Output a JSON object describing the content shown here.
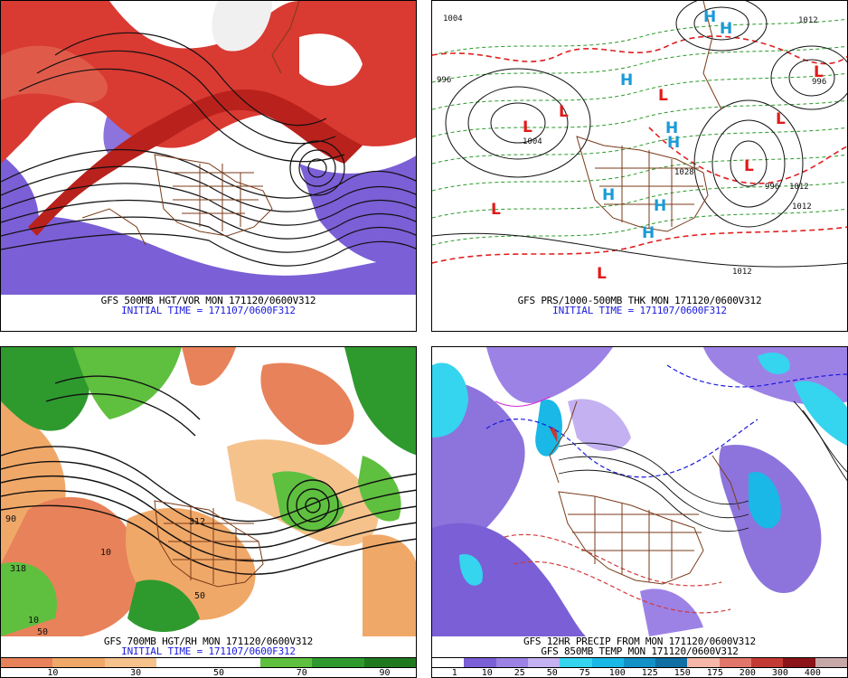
{
  "panels": [
    {
      "id": "p1",
      "caption_line1": "GFS 500MB HGT/VOR MON 171120/0600V312",
      "caption_line2": "INITIAL TIME = 171107/0600F312"
    },
    {
      "id": "p2",
      "caption_line1": "GFS PRS/1000-500MB THK MON 171120/0600V312",
      "caption_line2": "INITIAL TIME = 171107/0600F312",
      "pressure_labels": {
        "highs": [
          "H",
          "H",
          "H",
          "H",
          "H",
          "H",
          "H",
          "H"
        ],
        "lows": [
          "L",
          "L",
          "L",
          "L",
          "L",
          "L",
          "L",
          "L"
        ],
        "values": [
          "1004",
          "1012",
          "1012",
          "996",
          "996",
          "1004",
          "1012",
          "1028",
          "996",
          "1012"
        ]
      }
    },
    {
      "id": "p3",
      "caption_line1": "GFS 700MB HGT/RH MON 171120/0600V312",
      "caption_line2": "INITIAL TIME = 171107/0600F312",
      "contour_labels": [
        "312",
        "318",
        "90",
        "10",
        "50",
        "50",
        "10"
      ],
      "legend": {
        "colors": [
          "#e8825a",
          "#f0a868",
          "#f6c28c",
          "#ffffff",
          "#ffffff",
          "#5fbf3f",
          "#2e9a2e",
          "#1f7a1f"
        ],
        "ticks": [
          "10",
          "30",
          "50",
          "70",
          "90"
        ]
      }
    },
    {
      "id": "p4",
      "caption_line1": "GFS 12HR PRECIP FROM MON 171120/0600V312",
      "caption_line2": "GFS 850MB TEMP MON 171120/0600V312",
      "legend": {
        "colors": [
          "#ffffff",
          "#7b5fd6",
          "#9d82e6",
          "#c3b1f2",
          "#35d4ef",
          "#19b8e6",
          "#1291c7",
          "#0f6fa3",
          "#f5b8a8",
          "#e3766a",
          "#c33a34",
          "#8a1418",
          "#c6a8a8"
        ],
        "ticks": [
          "1",
          "10",
          "25",
          "50",
          "75",
          "100",
          "125",
          "150",
          "175",
          "200",
          "300",
          "400"
        ]
      }
    }
  ]
}
